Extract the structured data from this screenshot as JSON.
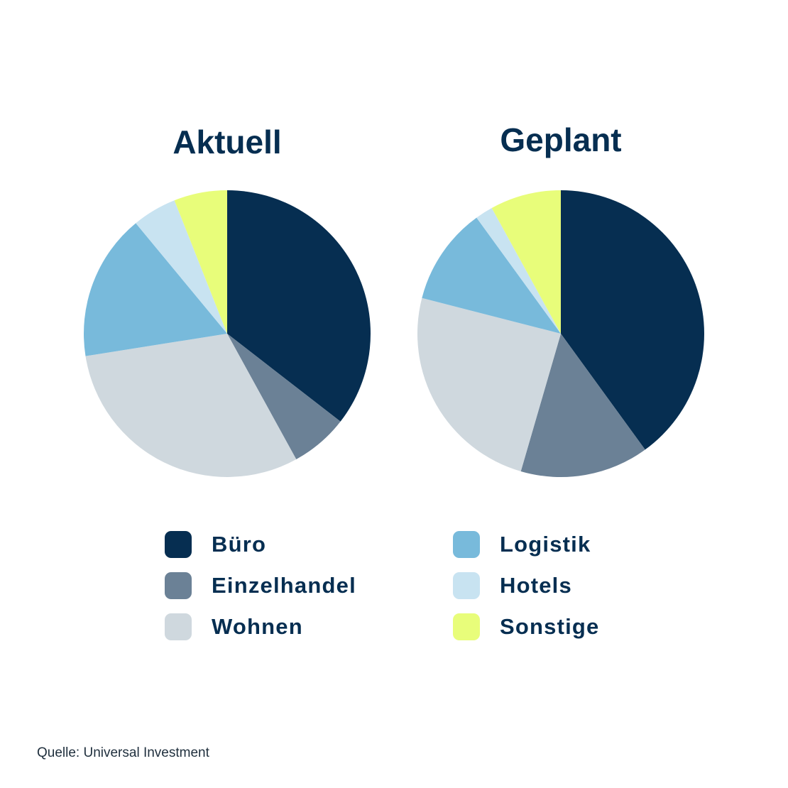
{
  "chart_data": [
    {
      "type": "pie",
      "title": "Aktuell",
      "categories": [
        "Büro",
        "Einzelhandel",
        "Wohnen",
        "Logistik",
        "Hotels",
        "Sonstige"
      ],
      "values": [
        35.5,
        6.5,
        30.5,
        16.5,
        5,
        6
      ],
      "start": "12 o'clock",
      "direction": "clockwise"
    },
    {
      "type": "pie",
      "title": "Geplant",
      "categories": [
        "Büro",
        "Einzelhandel",
        "Wohnen",
        "Logistik",
        "Hotels",
        "Sonstige"
      ],
      "values": [
        40,
        14.5,
        24.5,
        11,
        2,
        8
      ],
      "start": "12 o'clock",
      "direction": "clockwise"
    }
  ],
  "legend": {
    "left": [
      {
        "label": "Büro",
        "color": "#062e51"
      },
      {
        "label": "Einzelhandel",
        "color": "#6b8196"
      },
      {
        "label": "Wohnen",
        "color": "#cfd8de"
      }
    ],
    "right": [
      {
        "label": "Logistik",
        "color": "#78badb"
      },
      {
        "label": "Hotels",
        "color": "#c8e3f1"
      },
      {
        "label": "Sonstige",
        "color": "#e8fd7a"
      }
    ]
  },
  "colors": {
    "Büro": "#062e51",
    "Einzelhandel": "#6b8196",
    "Wohnen": "#cfd8de",
    "Logistik": "#78badb",
    "Hotels": "#c8e3f1",
    "Sonstige": "#e8fd7a",
    "text": "#062e51"
  },
  "source": "Quelle: Universal Investment"
}
